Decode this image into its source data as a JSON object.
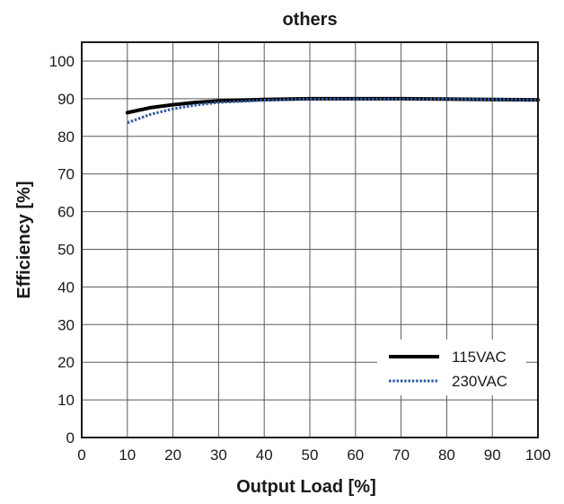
{
  "chart_data": {
    "type": "line",
    "title": "others",
    "xlabel": "Output Load [%]",
    "ylabel": "Efficiency [%]",
    "xlim": [
      0,
      100
    ],
    "ylim": [
      0,
      105
    ],
    "x_ticks": [
      0,
      10,
      20,
      30,
      40,
      50,
      60,
      70,
      80,
      90,
      100
    ],
    "y_ticks": [
      0,
      10,
      20,
      30,
      40,
      50,
      60,
      70,
      80,
      90,
      100
    ],
    "grid": true,
    "legend_position": "bottom-right",
    "series": [
      {
        "name": "115VAC",
        "style": "solid",
        "color": "#000000",
        "x": [
          10,
          15,
          20,
          25,
          30,
          40,
          50,
          60,
          70,
          80,
          90,
          100
        ],
        "y": [
          86.3,
          87.6,
          88.4,
          89.0,
          89.4,
          89.8,
          90.0,
          90.0,
          90.0,
          89.9,
          89.8,
          89.7
        ]
      },
      {
        "name": "230VAC",
        "style": "dotted",
        "color": "#2f5a9e",
        "x": [
          10,
          15,
          20,
          25,
          30,
          40,
          50,
          60,
          70,
          80,
          90,
          100
        ],
        "y": [
          83.6,
          85.8,
          87.3,
          88.3,
          89.0,
          89.6,
          89.9,
          89.9,
          89.9,
          89.9,
          89.8,
          89.7
        ]
      }
    ]
  }
}
